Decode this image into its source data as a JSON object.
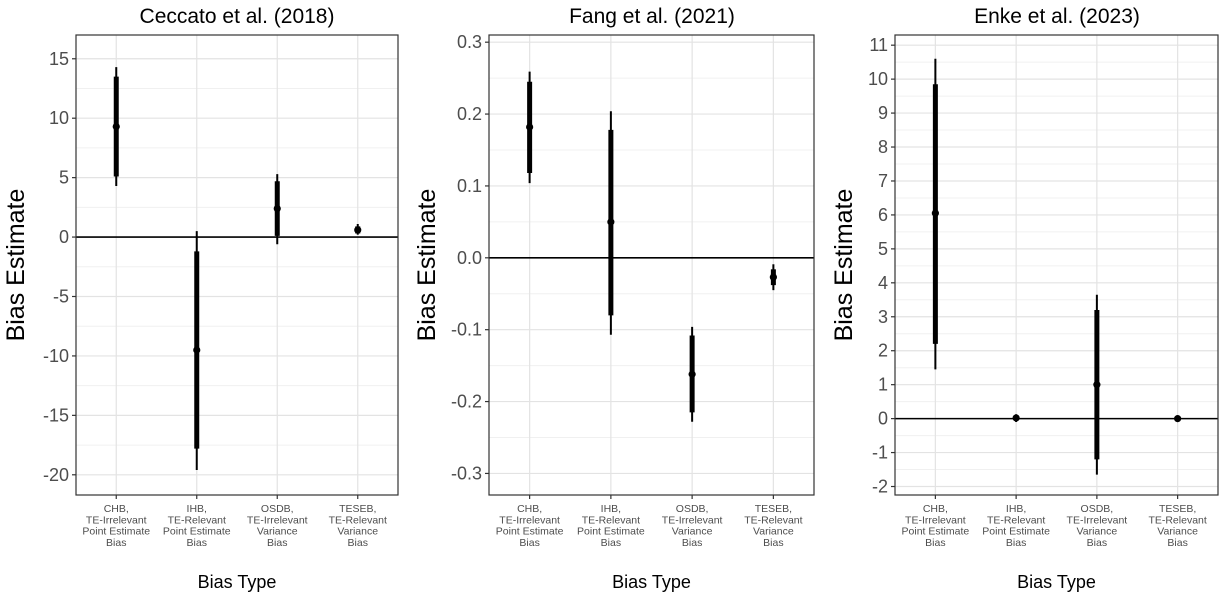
{
  "chart_data": [
    {
      "type": "errorbar",
      "title": "Ceccato et al. (2018)",
      "xlabel": "Bias Type",
      "ylabel": "Bias Estimate",
      "categories": [
        [
          "CHB,",
          "TE-Irrelevant",
          "Point Estimate",
          "Bias"
        ],
        [
          "IHB,",
          "TE-Relevant",
          "Point Estimate",
          "Bias"
        ],
        [
          "OSDB,",
          "TE-Irrelevant",
          "Variance",
          "Bias"
        ],
        [
          "TESEB,",
          "TE-Relevant",
          "Variance",
          "Bias"
        ]
      ],
      "ylim": [
        -21.7,
        17.0
      ],
      "yticks": [
        -20,
        -15,
        -10,
        -5,
        0,
        5,
        10,
        15
      ],
      "ytick_labels": [
        "-20",
        "-15",
        "-10",
        "-5",
        "0",
        "5",
        "10",
        "15"
      ],
      "estimate": [
        9.3,
        -9.5,
        2.4,
        0.6
      ],
      "inner_interval": [
        [
          5.1,
          13.5
        ],
        [
          -17.8,
          -1.2
        ],
        [
          0.1,
          4.7
        ],
        [
          0.3,
          0.9
        ]
      ],
      "outer_interval": [
        [
          4.3,
          14.3
        ],
        [
          -19.6,
          0.5
        ],
        [
          -0.6,
          5.3
        ],
        [
          0.2,
          1.1
        ]
      ],
      "reference_line": 0,
      "grid": true
    },
    {
      "type": "errorbar",
      "title": "Fang et al. (2021)",
      "xlabel": "Bias Type",
      "ylabel": "Bias Estimate",
      "categories": [
        [
          "CHB,",
          "TE-Irrelevant",
          "Point Estimate",
          "Bias"
        ],
        [
          "IHB,",
          "TE-Relevant",
          "Point Estimate",
          "Bias"
        ],
        [
          "OSDB,",
          "TE-Irrelevant",
          "Variance",
          "Bias"
        ],
        [
          "TESEB,",
          "TE-Relevant",
          "Variance",
          "Bias"
        ]
      ],
      "ylim": [
        -0.33,
        0.31
      ],
      "yticks": [
        -0.3,
        -0.2,
        -0.1,
        0.0,
        0.1,
        0.2,
        0.3
      ],
      "ytick_labels": [
        "-0.3",
        "-0.2",
        "-0.1",
        "0.0",
        "0.1",
        "0.2",
        "0.3"
      ],
      "estimate": [
        0.182,
        0.05,
        -0.162,
        -0.027
      ],
      "inner_interval": [
        [
          0.118,
          0.245
        ],
        [
          -0.08,
          0.178
        ],
        [
          -0.215,
          -0.108
        ],
        [
          -0.038,
          -0.016
        ]
      ],
      "outer_interval": [
        [
          0.104,
          0.259
        ],
        [
          -0.107,
          0.204
        ],
        [
          -0.228,
          -0.096
        ],
        [
          -0.045,
          -0.009
        ]
      ],
      "reference_line": 0,
      "grid": true
    },
    {
      "type": "errorbar",
      "title": "Enke et al. (2023)",
      "xlabel": "Bias Type",
      "ylabel": "Bias Estimate",
      "categories": [
        [
          "CHB,",
          "TE-Irrelevant",
          "Point Estimate",
          "Bias"
        ],
        [
          "IHB,",
          "TE-Relevant",
          "Point Estimate",
          "Bias"
        ],
        [
          "OSDB,",
          "TE-Irrelevant",
          "Variance",
          "Bias"
        ],
        [
          "TESEB,",
          "TE-Relevant",
          "Variance",
          "Bias"
        ]
      ],
      "ylim": [
        -2.25,
        11.3
      ],
      "yticks": [
        -2,
        -1,
        0,
        1,
        2,
        3,
        4,
        5,
        6,
        7,
        8,
        9,
        10,
        11
      ],
      "ytick_labels": [
        "-2",
        "-1",
        "0",
        "1",
        "2",
        "3",
        "4",
        "5",
        "6",
        "7",
        "8",
        "9",
        "10",
        "11"
      ],
      "estimate": [
        6.05,
        0.02,
        1.0,
        0.0
      ],
      "inner_interval": [
        [
          2.2,
          9.85
        ],
        [
          -0.05,
          0.09
        ],
        [
          -1.2,
          3.2
        ],
        [
          -0.03,
          0.03
        ]
      ],
      "outer_interval": [
        [
          1.45,
          10.6
        ],
        [
          -0.1,
          0.13
        ],
        [
          -1.65,
          3.65
        ],
        [
          -0.05,
          0.05
        ]
      ],
      "reference_line": 0,
      "grid": true
    }
  ]
}
